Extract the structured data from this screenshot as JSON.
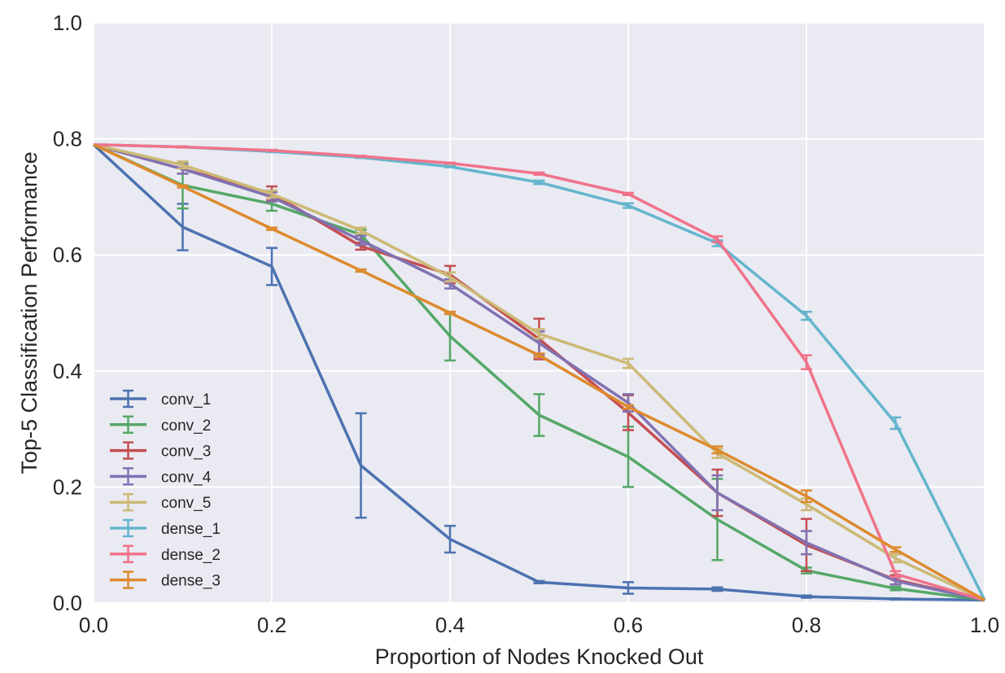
{
  "chart_data": {
    "type": "line",
    "title": "",
    "xlabel": "Proportion of Nodes Knocked Out",
    "ylabel": "Top-5 Classification Performance",
    "xlim": [
      0.0,
      1.0
    ],
    "ylim": [
      0.0,
      1.0
    ],
    "x_ticks": [
      "0.0",
      "0.2",
      "0.4",
      "0.6",
      "0.8",
      "1.0"
    ],
    "y_ticks": [
      "0.0",
      "0.2",
      "0.4",
      "0.6",
      "0.8",
      "1.0"
    ],
    "grid": true,
    "legend_position": "lower-left",
    "x": [
      0.0,
      0.1,
      0.2,
      0.3,
      0.4,
      0.5,
      0.6,
      0.7,
      0.8,
      0.9,
      1.0
    ],
    "series": [
      {
        "name": "conv_1",
        "color": "#4c72b0",
        "values": [
          0.79,
          0.648,
          0.58,
          0.237,
          0.11,
          0.036,
          0.026,
          0.024,
          0.011,
          0.007,
          0.005
        ],
        "errors": [
          0,
          0.04,
          0.032,
          0.09,
          0.023,
          0.002,
          0.01,
          0.003,
          0.002,
          0.001,
          0
        ]
      },
      {
        "name": "conv_2",
        "color": "#55a868",
        "values": [
          0.79,
          0.72,
          0.688,
          0.635,
          0.46,
          0.324,
          0.252,
          0.144,
          0.056,
          0.025,
          0.005
        ],
        "errors": [
          0,
          0.04,
          0.012,
          0.008,
          0.042,
          0.036,
          0.052,
          0.07,
          0.005,
          0.003,
          0
        ]
      },
      {
        "name": "conv_3",
        "color": "#c44e52",
        "values": [
          0.79,
          0.748,
          0.706,
          0.615,
          0.566,
          0.455,
          0.328,
          0.19,
          0.1,
          0.04,
          0.005
        ],
        "errors": [
          0,
          0.008,
          0.012,
          0.006,
          0.015,
          0.035,
          0.03,
          0.04,
          0.045,
          0.008,
          0
        ]
      },
      {
        "name": "conv_4",
        "color": "#8172b2",
        "values": [
          0.79,
          0.748,
          0.7,
          0.625,
          0.55,
          0.448,
          0.345,
          0.19,
          0.104,
          0.038,
          0.005
        ],
        "errors": [
          0,
          0.008,
          0.008,
          0.008,
          0.008,
          0.02,
          0.015,
          0.03,
          0.02,
          0.006,
          0
        ]
      },
      {
        "name": "conv_5",
        "color": "#ccb974",
        "values": [
          0.79,
          0.755,
          0.705,
          0.642,
          0.562,
          0.464,
          0.413,
          0.258,
          0.17,
          0.077,
          0.005
        ],
        "errors": [
          0,
          0.006,
          0.006,
          0.005,
          0.008,
          0.008,
          0.008,
          0.008,
          0.01,
          0.007,
          0
        ]
      },
      {
        "name": "dense_1",
        "color": "#64b5cd",
        "values": [
          0.79,
          0.786,
          0.778,
          0.768,
          0.752,
          0.725,
          0.685,
          0.62,
          0.495,
          0.31,
          0.005
        ],
        "errors": [
          0,
          0.001,
          0.001,
          0.001,
          0.001,
          0.003,
          0.004,
          0.005,
          0.007,
          0.01,
          0
        ]
      },
      {
        "name": "dense_2",
        "color": "#f0738a",
        "values": [
          0.79,
          0.786,
          0.78,
          0.77,
          0.758,
          0.74,
          0.705,
          0.627,
          0.415,
          0.05,
          0.005
        ],
        "errors": [
          0,
          0.001,
          0.001,
          0.001,
          0.001,
          0.002,
          0.002,
          0.005,
          0.012,
          0.005,
          0
        ]
      },
      {
        "name": "dense_3",
        "color": "#dd8a2e",
        "values": [
          0.79,
          0.718,
          0.645,
          0.573,
          0.5,
          0.427,
          0.338,
          0.264,
          0.184,
          0.092,
          0.005
        ],
        "errors": [
          0,
          0.002,
          0.002,
          0.002,
          0.002,
          0.003,
          0.003,
          0.006,
          0.01,
          0.004,
          0
        ]
      }
    ]
  }
}
